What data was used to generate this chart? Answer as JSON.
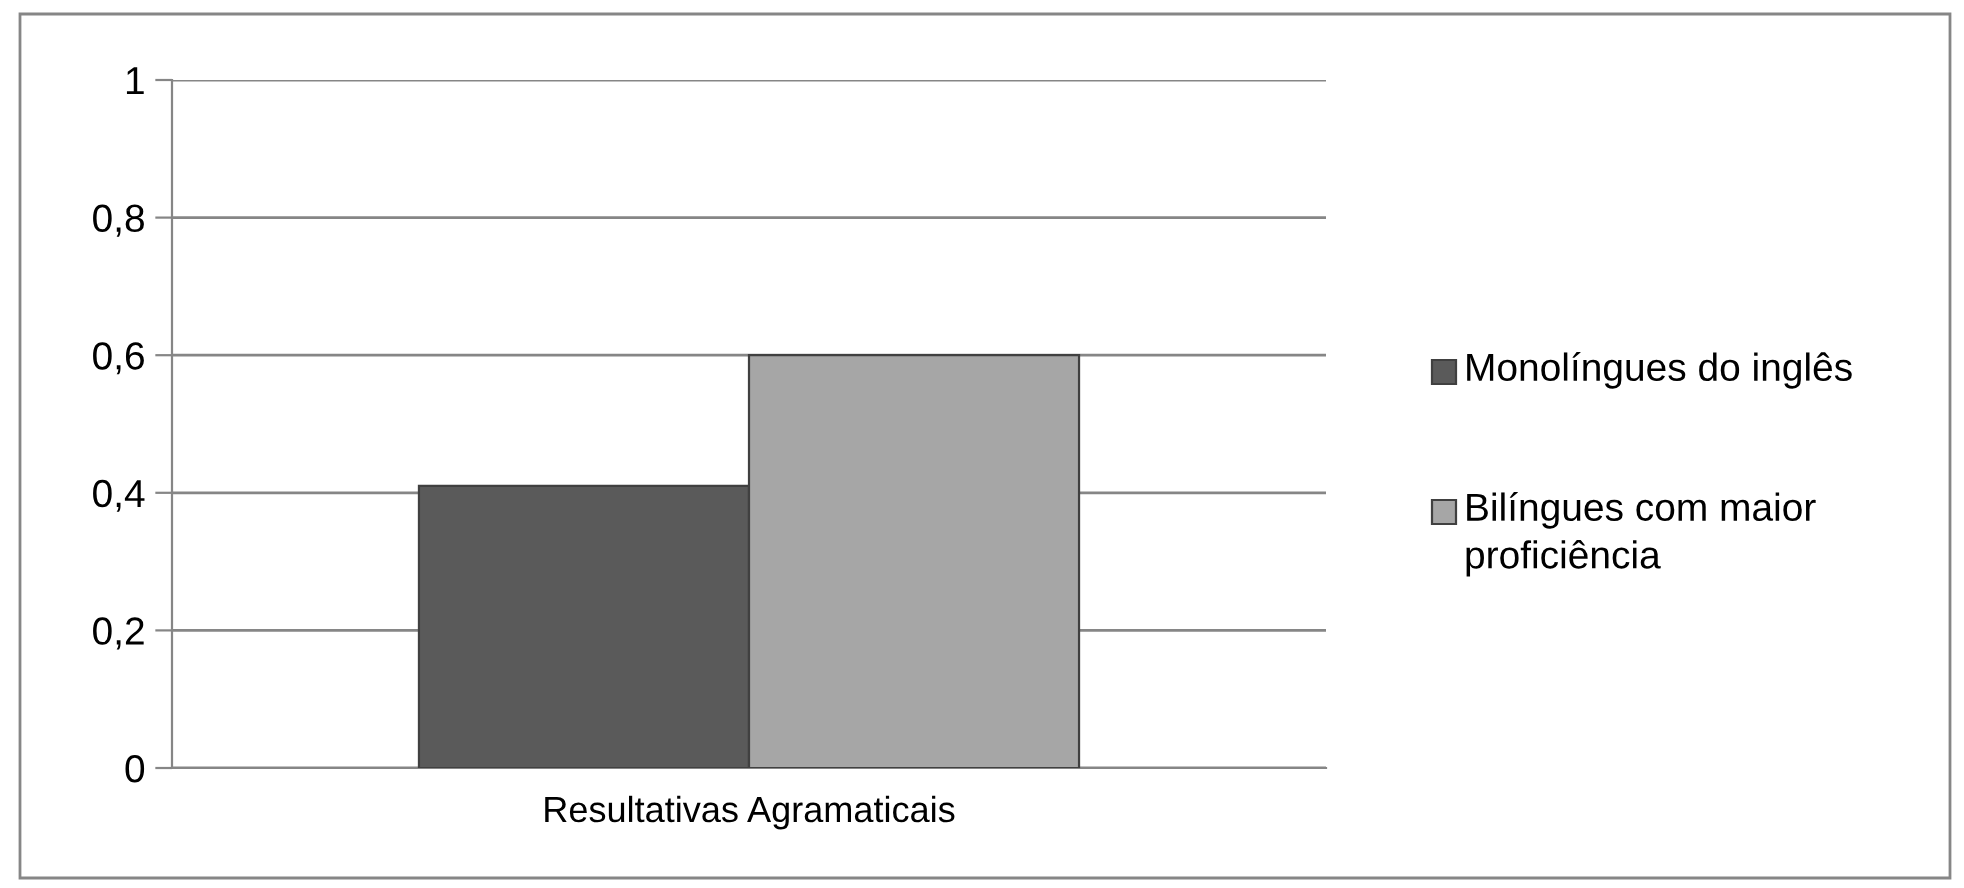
{
  "chart_data": {
    "type": "bar",
    "categories": [
      "Resultativas Agramaticais"
    ],
    "series": [
      {
        "name": "Monolíngues do inglês",
        "color": "#5a5a5a",
        "values": [
          0.41
        ]
      },
      {
        "name": "Bilíngues com maior proficiência",
        "color": "#a6a6a6",
        "values": [
          0.6
        ]
      }
    ],
    "ylim": [
      0,
      1
    ],
    "yticks": [
      0,
      {
        "value": 0.2,
        "label": "0,2"
      },
      {
        "value": 0.4,
        "label": "0,4"
      },
      {
        "value": 0.6,
        "label": "0,6"
      },
      {
        "value": 0.8,
        "label": "0,8"
      },
      1
    ],
    "grid": "y",
    "legend": "right"
  }
}
